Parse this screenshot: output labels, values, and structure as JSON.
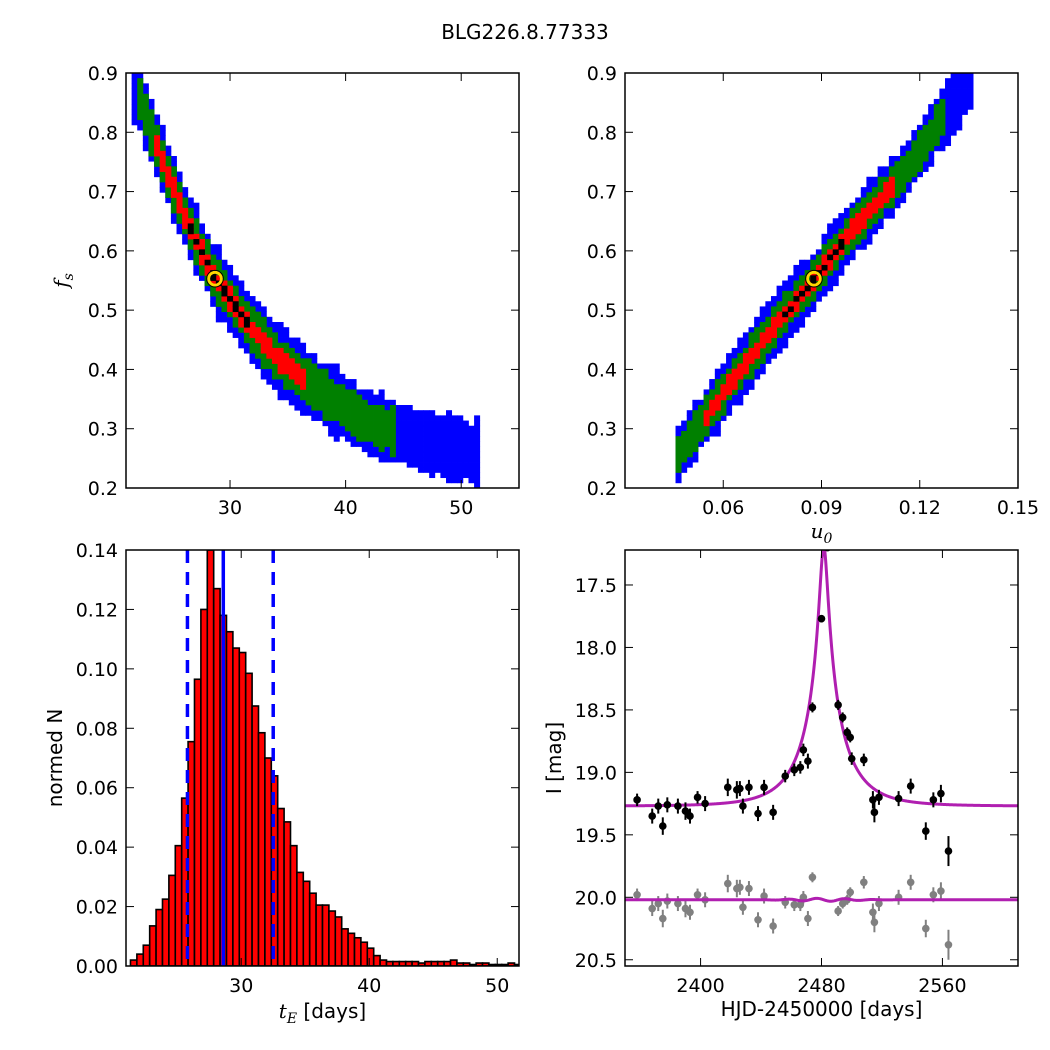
{
  "figure": {
    "title": "BLG226.8.77333"
  },
  "chart_data": [
    {
      "id": "fs_vs_tE",
      "type": "heatmap",
      "title": "",
      "xlabel": "",
      "ylabel": "f_s",
      "xlim": [
        21,
        55
      ],
      "ylim": [
        0.2,
        0.9
      ],
      "xticks": [
        30,
        40,
        50
      ],
      "xtick_labels": [
        "30",
        "40",
        "50"
      ],
      "yticks": [
        0.2,
        0.3,
        0.4,
        0.5,
        0.6,
        0.7,
        0.8,
        0.9
      ],
      "ytick_labels": [
        "0.2",
        "0.3",
        "0.4",
        "0.5",
        "0.6",
        "0.7",
        "0.8",
        "0.9"
      ],
      "levels": [
        {
          "color": "#0000ff",
          "width": 0.055
        },
        {
          "color": "#008000",
          "width": 0.036
        },
        {
          "color": "#ff0000",
          "width": 0.017
        },
        {
          "color": "#000000",
          "width": 0.006
        }
      ],
      "ridge": [
        [
          21.5,
          0.89
        ],
        [
          24,
          0.76
        ],
        [
          26,
          0.66
        ],
        [
          28.5,
          0.56
        ],
        [
          31,
          0.49
        ],
        [
          34,
          0.42
        ],
        [
          38,
          0.36
        ],
        [
          42,
          0.31
        ],
        [
          46.5,
          0.28
        ],
        [
          51,
          0.26
        ]
      ],
      "level_extents": [
        [
          21.5,
          51.5
        ],
        [
          22,
          44.5
        ],
        [
          23.5,
          36.5
        ],
        [
          26.5,
          31.5
        ]
      ],
      "best_fit": {
        "x": 28.7,
        "y": 0.553
      }
    },
    {
      "id": "fs_vs_u0",
      "type": "heatmap",
      "title": "",
      "xlabel": "u_0",
      "ylabel": "",
      "xlim": [
        0.03,
        0.15
      ],
      "ylim": [
        0.2,
        0.9
      ],
      "xticks": [
        0.06,
        0.09,
        0.12,
        0.15
      ],
      "xtick_labels": [
        "0.06",
        "0.09",
        "0.12",
        "0.15"
      ],
      "yticks": [
        0.2,
        0.3,
        0.4,
        0.5,
        0.6,
        0.7,
        0.8,
        0.9
      ],
      "ytick_labels": [
        "0.2",
        "0.3",
        "0.4",
        "0.5",
        "0.6",
        "0.7",
        "0.8",
        "0.9"
      ],
      "levels": [
        {
          "color": "#0000ff",
          "width": 0.05
        },
        {
          "color": "#008000",
          "width": 0.032
        },
        {
          "color": "#ff0000",
          "width": 0.015
        },
        {
          "color": "#000000",
          "width": 0.005
        }
      ],
      "ridge": [
        [
          0.046,
          0.255
        ],
        [
          0.06,
          0.36
        ],
        [
          0.075,
          0.47
        ],
        [
          0.088,
          0.553
        ],
        [
          0.1,
          0.64
        ],
        [
          0.115,
          0.73
        ],
        [
          0.125,
          0.81
        ],
        [
          0.135,
          0.88
        ]
      ],
      "level_extents": [
        [
          0.046,
          0.136
        ],
        [
          0.046,
          0.127
        ],
        [
          0.054,
          0.112
        ],
        [
          0.078,
          0.096
        ]
      ],
      "best_fit": {
        "x": 0.0877,
        "y": 0.553
      }
    },
    {
      "id": "tE_histogram",
      "type": "bar",
      "title": "",
      "xlabel": "t_E [days]",
      "ylabel": "normed N",
      "xlim": [
        21,
        51.7
      ],
      "ylim": [
        0,
        0.14
      ],
      "xticks": [
        30,
        40,
        50
      ],
      "xtick_labels": [
        "30",
        "40",
        "50"
      ],
      "yticks": [
        0,
        0.02,
        0.04,
        0.06,
        0.08,
        0.1,
        0.12,
        0.14
      ],
      "ytick_labels": [
        "0.00",
        "0.02",
        "0.04",
        "0.06",
        "0.08",
        "0.10",
        "0.12",
        "0.14"
      ],
      "bin_start": 21.35,
      "bin_width": 0.5,
      "values": [
        0.002,
        0.004,
        0.007,
        0.0135,
        0.019,
        0.0225,
        0.0305,
        0.0405,
        0.0565,
        0.0755,
        0.0965,
        0.12,
        0.14,
        0.127,
        0.118,
        0.1125,
        0.107,
        0.1055,
        0.0985,
        0.0875,
        0.0785,
        0.07,
        0.064,
        0.053,
        0.0485,
        0.0405,
        0.0315,
        0.0285,
        0.0245,
        0.0205,
        0.0205,
        0.0185,
        0.0165,
        0.0125,
        0.011,
        0.0095,
        0.008,
        0.006,
        0.0035,
        0.002,
        0.0015,
        0.0015,
        0.0015,
        0.0015,
        0.0015,
        0.001,
        0.0015,
        0.0015,
        0.0015,
        0.0015,
        0.002,
        0.001,
        0.001,
        0.0005,
        0.001,
        0.001,
        0.0005,
        0.0005,
        0.0005,
        0.001,
        0.0005
      ],
      "bar_color": "#ff0000",
      "vlines": [
        {
          "x": 28.6,
          "style": "solid",
          "color": "#0000ff"
        },
        {
          "x": 25.8,
          "style": "dashed",
          "color": "#0000ff"
        },
        {
          "x": 32.5,
          "style": "dashed",
          "color": "#0000ff"
        }
      ]
    },
    {
      "id": "light_curve",
      "type": "scatter",
      "title": "",
      "xlabel": "HJD-2450000 [days]",
      "ylabel": "I [mag]",
      "xlim": [
        2350,
        2610
      ],
      "ylim": [
        20.55,
        17.22
      ],
      "xticks": [
        2400,
        2480,
        2560
      ],
      "xtick_labels": [
        "2400",
        "2480",
        "2560"
      ],
      "yticks": [
        17.5,
        18.0,
        18.5,
        19.0,
        19.5,
        20.0,
        20.5
      ],
      "ytick_labels": [
        "17.5",
        "18.0",
        "18.5",
        "19.0",
        "19.5",
        "20.0",
        "20.5"
      ],
      "model": {
        "t0": 2481.5,
        "tE": 28.6,
        "u0": 0.0877,
        "fs": 0.553,
        "baseline": 19.27,
        "color": "#b01fb0"
      },
      "residual_baseline": 20.02,
      "series": [
        {
          "name": "",
          "color": "#000000",
          "points": [
            [
              2358,
              19.22,
              0.05
            ],
            [
              2368,
              19.35,
              0.06
            ],
            [
              2372,
              19.27,
              0.06
            ],
            [
              2375,
              19.43,
              0.07
            ],
            [
              2378,
              19.26,
              0.06
            ],
            [
              2385,
              19.27,
              0.06
            ],
            [
              2390,
              19.31,
              0.07
            ],
            [
              2393,
              19.35,
              0.06
            ],
            [
              2398,
              19.2,
              0.05
            ],
            [
              2403,
              19.25,
              0.06
            ],
            [
              2418,
              19.12,
              0.07
            ],
            [
              2424,
              19.14,
              0.07
            ],
            [
              2426,
              19.13,
              0.06
            ],
            [
              2428,
              19.27,
              0.06
            ],
            [
              2432,
              19.12,
              0.06
            ],
            [
              2438,
              19.33,
              0.06
            ],
            [
              2442,
              19.12,
              0.06
            ],
            [
              2448,
              19.32,
              0.06
            ],
            [
              2456,
              19.03,
              0.05
            ],
            [
              2462,
              18.98,
              0.05
            ],
            [
              2466,
              18.96,
              0.05
            ],
            [
              2468,
              18.82,
              0.05
            ],
            [
              2471,
              18.91,
              0.06
            ],
            [
              2474,
              18.48,
              0.04
            ],
            [
              2480,
              17.77,
              0.03
            ],
            [
              2484,
              17.2,
              0.03
            ],
            [
              2491,
              18.46,
              0.04
            ],
            [
              2494,
              18.56,
              0.04
            ],
            [
              2497,
              18.68,
              0.04
            ],
            [
              2499,
              18.72,
              0.04
            ],
            [
              2500,
              18.89,
              0.05
            ],
            [
              2508,
              18.9,
              0.05
            ],
            [
              2514,
              19.22,
              0.07
            ],
            [
              2515,
              19.32,
              0.08
            ],
            [
              2518,
              19.2,
              0.06
            ],
            [
              2531,
              19.21,
              0.06
            ],
            [
              2539,
              19.11,
              0.06
            ],
            [
              2549,
              19.47,
              0.07
            ],
            [
              2554,
              19.22,
              0.06
            ],
            [
              2559,
              19.17,
              0.07
            ],
            [
              2564,
              19.63,
              0.12
            ]
          ]
        },
        {
          "name": "",
          "color": "#808080",
          "points": [
            [
              2358,
              19.98,
              0.05
            ],
            [
              2368,
              20.09,
              0.06
            ],
            [
              2372,
              20.05,
              0.06
            ],
            [
              2375,
              20.17,
              0.07
            ],
            [
              2378,
              20.03,
              0.06
            ],
            [
              2385,
              20.05,
              0.06
            ],
            [
              2390,
              20.09,
              0.07
            ],
            [
              2393,
              20.12,
              0.06
            ],
            [
              2398,
              19.98,
              0.05
            ],
            [
              2403,
              20.02,
              0.06
            ],
            [
              2418,
              19.89,
              0.07
            ],
            [
              2424,
              19.93,
              0.07
            ],
            [
              2426,
              19.92,
              0.06
            ],
            [
              2428,
              20.08,
              0.06
            ],
            [
              2432,
              19.93,
              0.06
            ],
            [
              2438,
              20.18,
              0.06
            ],
            [
              2442,
              19.99,
              0.06
            ],
            [
              2448,
              20.23,
              0.06
            ],
            [
              2456,
              20.04,
              0.05
            ],
            [
              2462,
              20.06,
              0.05
            ],
            [
              2466,
              20.06,
              0.05
            ],
            [
              2468,
              20.0,
              0.05
            ],
            [
              2471,
              20.17,
              0.06
            ],
            [
              2474,
              19.84,
              0.04
            ],
            [
              2491,
              20.11,
              0.04
            ],
            [
              2494,
              20.05,
              0.04
            ],
            [
              2497,
              20.02,
              0.04
            ],
            [
              2499,
              19.96,
              0.04
            ],
            [
              2508,
              19.88,
              0.05
            ],
            [
              2514,
              20.12,
              0.07
            ],
            [
              2515,
              20.2,
              0.08
            ],
            [
              2518,
              20.05,
              0.06
            ],
            [
              2531,
              20.0,
              0.06
            ],
            [
              2539,
              19.88,
              0.06
            ],
            [
              2549,
              20.25,
              0.07
            ],
            [
              2554,
              19.98,
              0.06
            ],
            [
              2559,
              19.95,
              0.07
            ],
            [
              2564,
              20.38,
              0.12
            ]
          ]
        }
      ]
    }
  ]
}
